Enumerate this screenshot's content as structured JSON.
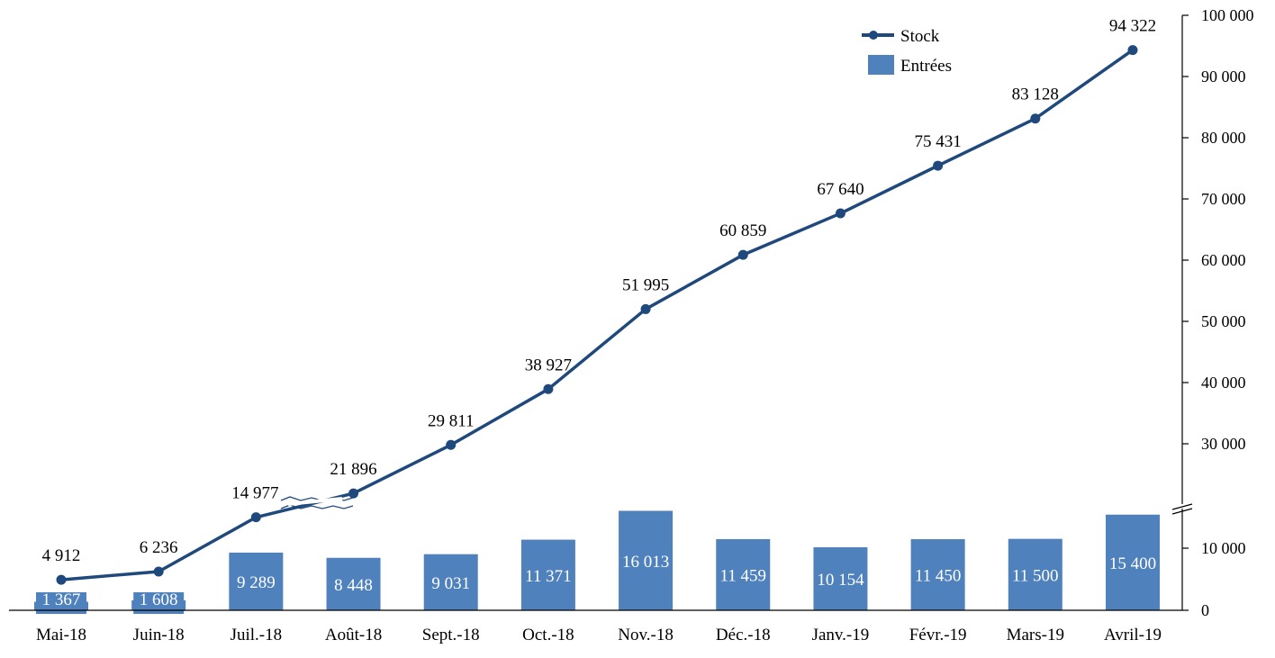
{
  "chart_data": {
    "type": "bar+line",
    "title": "",
    "xlabel": "",
    "ylabel": "",
    "categories": [
      "Mai-18",
      "Juin-18",
      "Juil.-18",
      "Août-18",
      "Sept.-18",
      "Oct.-18",
      "Nov.-18",
      "Déc.-18",
      "Janv.-19",
      "Févr.-19",
      "Mars-19",
      "Avril-19"
    ],
    "series": [
      {
        "name": "Stock",
        "type": "line",
        "color": "#1F497D",
        "values": [
          4912,
          6236,
          14977,
          21896,
          29811,
          38927,
          51995,
          60859,
          67640,
          75431,
          83128,
          94322
        ],
        "labels": [
          "4 912",
          "6 236",
          "14 977",
          "21 896",
          "29 811",
          "38 927",
          "51 995",
          "60 859",
          "67 640",
          "75 431",
          "83 128",
          "94 322"
        ]
      },
      {
        "name": "Entrées",
        "type": "bar",
        "color": "#4F81BD",
        "values": [
          1367,
          1608,
          9289,
          8448,
          9031,
          11371,
          16013,
          11459,
          10154,
          11450,
          11500,
          15400
        ],
        "labels": [
          "1 367",
          "1 608",
          "9 289",
          "8 448",
          "9 031",
          "11 371",
          "16 013",
          "11 459",
          "10 154",
          "11 450",
          "11 500",
          "15 400"
        ]
      }
    ],
    "y_axis": {
      "position": "right",
      "ylim": [
        0,
        100000
      ],
      "broken": true,
      "ticks": [
        0,
        10000,
        30000,
        40000,
        50000,
        60000,
        70000,
        80000,
        90000,
        100000
      ],
      "tick_labels": [
        "0",
        "10 000",
        "30 000",
        "40 000",
        "50 000",
        "60 000",
        "70 000",
        "80 000",
        "90 000",
        "100 000"
      ]
    },
    "grid": false,
    "legend": {
      "placement": "top-right",
      "entries": [
        "Stock",
        "Entrées"
      ]
    }
  }
}
